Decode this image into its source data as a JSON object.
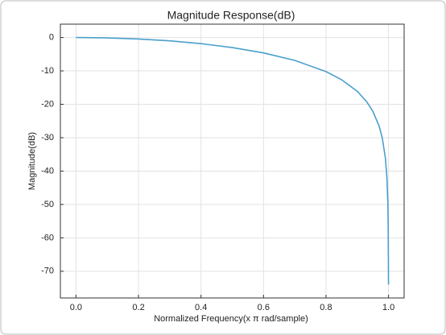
{
  "chart_data": {
    "type": "line",
    "title": "Magnitude Response(dB)",
    "x_label": "Normalized Frequency(x π rad/sample)",
    "y_label": "Magnitude(dB)",
    "x": [
      0,
      0.1,
      0.2,
      0.3,
      0.4,
      0.5,
      0.6,
      0.7,
      0.8,
      0.85,
      0.9,
      0.93,
      0.95,
      0.97,
      0.98,
      0.99,
      0.995,
      0.998,
      0.999,
      1.0
    ],
    "series": [
      {
        "name": "Magnitude",
        "color": "#4a9fcc",
        "values": [
          0,
          -0.11,
          -0.44,
          -1.0,
          -1.84,
          -3.01,
          -4.61,
          -6.86,
          -10.2,
          -12.64,
          -16.11,
          -19.2,
          -22.11,
          -26.54,
          -30.06,
          -36.08,
          -42.1,
          -50.06,
          -56.08,
          -74
        ]
      }
    ],
    "xlim": [
      -0.05,
      1.05
    ],
    "xticks": [
      {
        "value": 0,
        "label": "0.0"
      },
      0.2,
      0.4,
      0.6,
      0.8,
      {
        "value": 1,
        "label": "1.0"
      }
    ],
    "ylim": [
      -78,
      4
    ],
    "yticks": [
      0,
      -10,
      -20,
      -30,
      -40,
      -50,
      -60,
      -70
    ],
    "grid": true
  }
}
